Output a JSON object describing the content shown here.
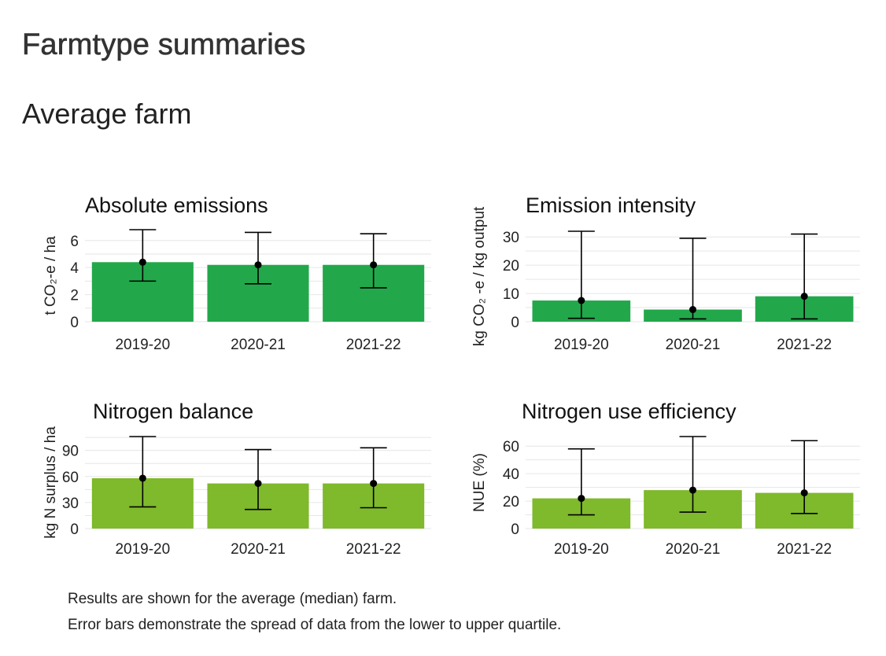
{
  "page": {
    "title": "Farmtype summaries",
    "section": "Average farm"
  },
  "footnotes": [
    "Results are shown for the average (median) farm.",
    "Error bars demonstrate the spread of data from the lower to upper quartile."
  ],
  "colors": {
    "emissions_bar": "#22a84a",
    "nitrogen_bar": "#7fb92c",
    "gridline": "#e6e6e6",
    "error_bar": "#000000"
  },
  "chart_data": [
    {
      "type": "bar",
      "title": "Absolute emissions",
      "ylabel": "t CO₂-e / ha",
      "categories": [
        "2019-20",
        "2020-21",
        "2021-22"
      ],
      "values": [
        4.4,
        4.2,
        4.2
      ],
      "lower": [
        3.0,
        2.8,
        2.5
      ],
      "upper": [
        6.8,
        6.6,
        6.5
      ],
      "yticks": [
        0,
        2,
        4,
        6
      ],
      "ylim": [
        0,
        6.8
      ],
      "color": "#22a84a",
      "grid": true
    },
    {
      "type": "bar",
      "title": "Emission intensity",
      "ylabel": "kg CO₂ -e / kg output",
      "categories": [
        "2019-20",
        "2020-21",
        "2021-22"
      ],
      "values": [
        7.5,
        4.3,
        9.0
      ],
      "lower": [
        1.2,
        1.0,
        1.0
      ],
      "upper": [
        32.0,
        29.5,
        31.0
      ],
      "yticks": [
        0,
        10,
        20,
        30
      ],
      "ylim": [
        0,
        32
      ],
      "color": "#22a84a",
      "grid": true
    },
    {
      "type": "bar",
      "title": "Nitrogen balance",
      "ylabel": "kg N surplus / ha",
      "categories": [
        "2019-20",
        "2020-21",
        "2021-22"
      ],
      "values": [
        58,
        52,
        52
      ],
      "lower": [
        25,
        22,
        24
      ],
      "upper": [
        106,
        91,
        93
      ],
      "yticks": [
        0,
        30,
        60,
        90
      ],
      "ylim": [
        0,
        106
      ],
      "color": "#7fb92c",
      "grid": true
    },
    {
      "type": "bar",
      "title": "Nitrogen use efficiency",
      "ylabel": "NUE (%)",
      "categories": [
        "2019-20",
        "2020-21",
        "2021-22"
      ],
      "values": [
        22,
        28,
        26
      ],
      "lower": [
        10,
        12,
        11
      ],
      "upper": [
        58,
        67,
        64
      ],
      "yticks": [
        0,
        20,
        40,
        60
      ],
      "ylim": [
        0,
        67
      ],
      "color": "#7fb92c",
      "grid": true
    }
  ]
}
